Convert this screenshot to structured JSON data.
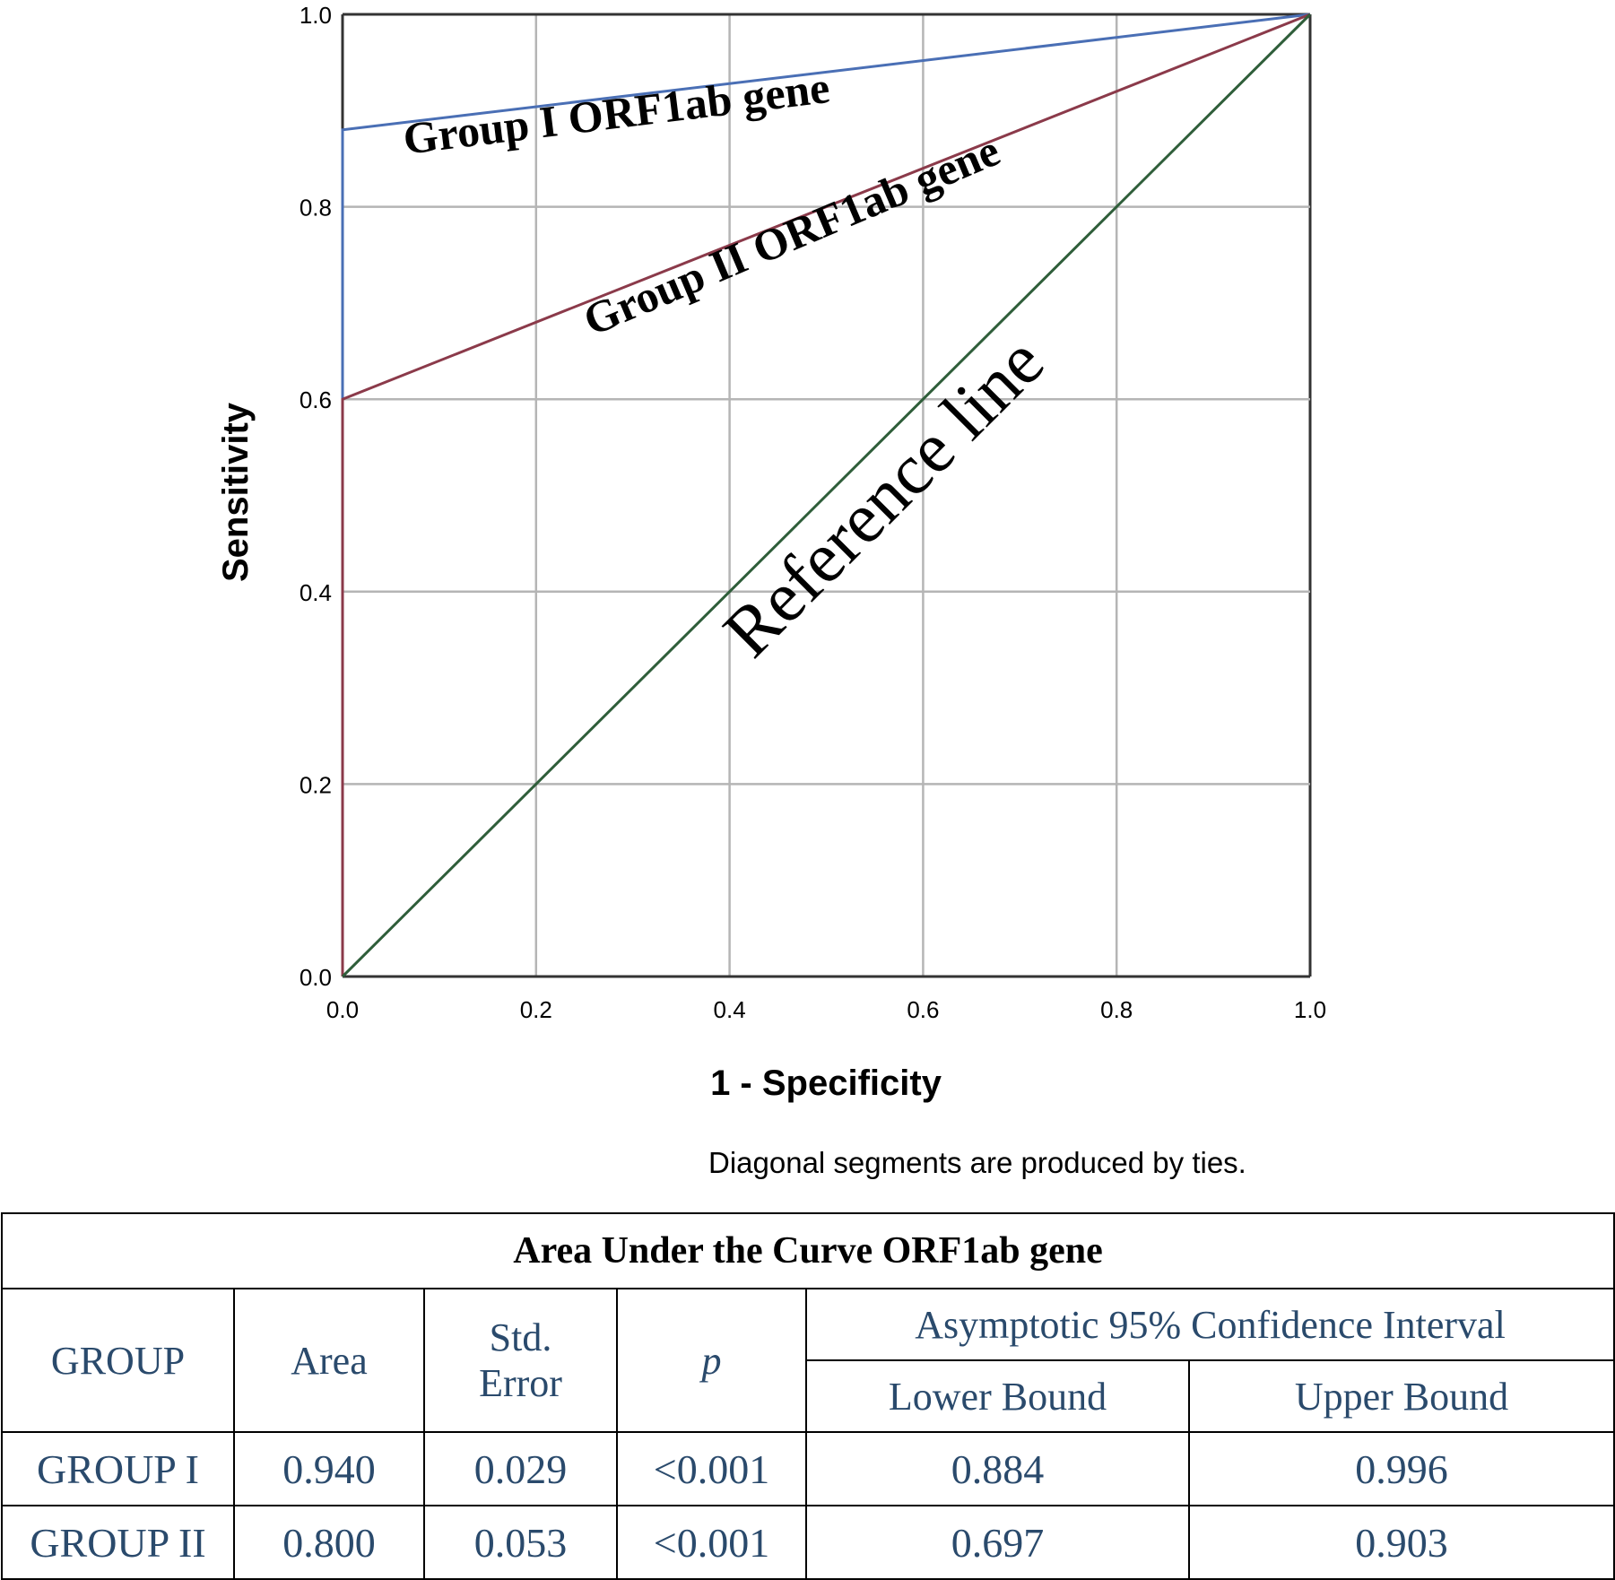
{
  "chart_data": {
    "type": "line",
    "xlabel": "1 - Specificity",
    "ylabel": "Sensitivity",
    "xlim": [
      0,
      1
    ],
    "ylim": [
      0,
      1
    ],
    "x_ticks": [
      "0.0",
      "0.2",
      "0.4",
      "0.6",
      "0.8",
      "1.0"
    ],
    "y_ticks": [
      "0.0",
      "0.2",
      "0.4",
      "0.6",
      "0.8",
      "1.0"
    ],
    "grid": true,
    "note": "Diagonal segments are produced by ties.",
    "series": [
      {
        "name": "Group I ORF1ab gene",
        "color": "#4a6fb5",
        "points": [
          [
            0,
            0
          ],
          [
            0,
            0.88
          ],
          [
            1,
            1
          ]
        ]
      },
      {
        "name": "Group II ORF1ab gene",
        "color": "#8b3a4a",
        "points": [
          [
            0,
            0
          ],
          [
            0,
            0.6
          ],
          [
            1,
            1
          ]
        ]
      },
      {
        "name": "Reference line",
        "color": "#2f5e3a",
        "points": [
          [
            0,
            0
          ],
          [
            1,
            1
          ]
        ]
      }
    ]
  },
  "table": {
    "title": "Area Under the Curve ORF1ab gene",
    "headers": {
      "group": "GROUP",
      "area": "Area",
      "std_error_line1": "Std.",
      "std_error_line2": "Error",
      "p": "p",
      "ci": "Asymptotic 95% Confidence Interval",
      "lower": "Lower Bound",
      "upper": "Upper Bound"
    },
    "rows": [
      {
        "group": "GROUP I",
        "area": "0.940",
        "std_error": "0.029",
        "p": "<0.001",
        "lower": "0.884",
        "upper": "0.996"
      },
      {
        "group": "GROUP II",
        "area": "0.800",
        "std_error": "0.053",
        "p": "<0.001",
        "lower": "0.697",
        "upper": "0.903"
      }
    ]
  }
}
